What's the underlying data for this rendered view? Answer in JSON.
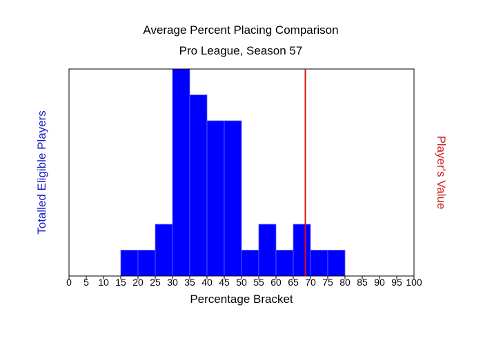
{
  "chart_data": {
    "type": "bar",
    "title": "Average Percent Placing Comparison",
    "subtitle": "Pro League, Season 57",
    "xlabel": "Percentage Bracket",
    "ylabel": "Totalled Eligible Players",
    "y2label": "Player's Value",
    "xlim": [
      0,
      100
    ],
    "ylim": [
      0,
      8
    ],
    "bin_width": 5,
    "x_ticks": [
      "0",
      "5",
      "10",
      "15",
      "20",
      "25",
      "30",
      "35",
      "40",
      "45",
      "50",
      "55",
      "60",
      "65",
      "70",
      "75",
      "80",
      "85",
      "90",
      "95",
      "100"
    ],
    "bins": [
      {
        "start": 15,
        "value": 1
      },
      {
        "start": 20,
        "value": 1
      },
      {
        "start": 25,
        "value": 2
      },
      {
        "start": 30,
        "value": 8
      },
      {
        "start": 35,
        "value": 7
      },
      {
        "start": 40,
        "value": 6
      },
      {
        "start": 45,
        "value": 6
      },
      {
        "start": 50,
        "value": 1
      },
      {
        "start": 55,
        "value": 2
      },
      {
        "start": 60,
        "value": 1
      },
      {
        "start": 65,
        "value": 2
      },
      {
        "start": 70,
        "value": 1
      },
      {
        "start": 75,
        "value": 1
      }
    ],
    "player_value": 68.5,
    "grid": false,
    "colors": {
      "bars": "#0000ff",
      "bar_edge": "#6666ff",
      "marker": "#e01010",
      "ylabel": "#1a1ac8",
      "y2label": "#cc2020"
    }
  }
}
